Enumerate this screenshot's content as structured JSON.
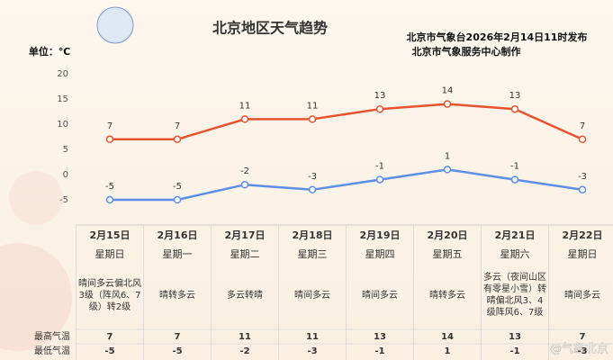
{
  "chart_data": {
    "type": "line",
    "title": "北京地区天气趋势",
    "subtitle": [
      "北京市气象台2026年2月14日11时发布",
      "北京市气象服务中心制作"
    ],
    "y_unit_label": "单位：℃",
    "categories": [
      "2月15日",
      "2月16日",
      "2月17日",
      "2月18日",
      "2月19日",
      "2月20日",
      "2月21日",
      "2月22日"
    ],
    "weekdays": [
      "星期日",
      "星期一",
      "星期二",
      "星期三",
      "星期四",
      "星期五",
      "星期六",
      "星期日"
    ],
    "weather": [
      "晴间多云偏北风3级（阵风6、7级）转2级",
      "晴转多云",
      "多云转晴",
      "晴间多云",
      "晴间多云",
      "晴转多云",
      "多云（夜间山区有零星小雪）转晴偏北风3、4级阵风6、7级",
      "晴间多云"
    ],
    "series": [
      {
        "name": "最高气温",
        "color": "#e8532e",
        "values": [
          7,
          7,
          11,
          11,
          13,
          14,
          13,
          7
        ]
      },
      {
        "name": "最低气温",
        "color": "#5b8fe8",
        "values": [
          -5,
          -5,
          -2,
          -3,
          -1,
          1,
          -1,
          -3
        ]
      }
    ],
    "ylim": [
      -5,
      20
    ],
    "yticks": [
      -5,
      0,
      5,
      10,
      15,
      20
    ],
    "grid": false,
    "watermark": "@气象北京"
  }
}
